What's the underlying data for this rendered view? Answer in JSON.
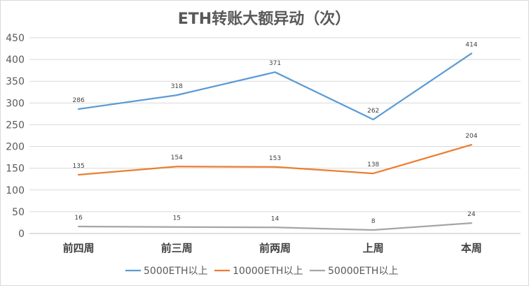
{
  "chart_data": {
    "type": "line",
    "title": "ETH转账大额异动（次）",
    "categories": [
      "前四周",
      "前三周",
      "前两周",
      "上周",
      "本周"
    ],
    "ylim": [
      0,
      450
    ],
    "yticks": [
      0,
      50,
      100,
      150,
      200,
      250,
      300,
      350,
      400,
      450
    ],
    "grid": true,
    "legend_position": "bottom",
    "series": [
      {
        "name": "5000ETH以上",
        "values": [
          286,
          318,
          371,
          262,
          414
        ],
        "color": "#5b9bd5"
      },
      {
        "name": "10000ETH以上",
        "values": [
          135,
          154,
          153,
          138,
          204
        ],
        "color": "#ed7d31"
      },
      {
        "name": "50000ETH以上",
        "values": [
          16,
          15,
          14,
          8,
          24
        ],
        "color": "#a5a5a5"
      }
    ]
  }
}
